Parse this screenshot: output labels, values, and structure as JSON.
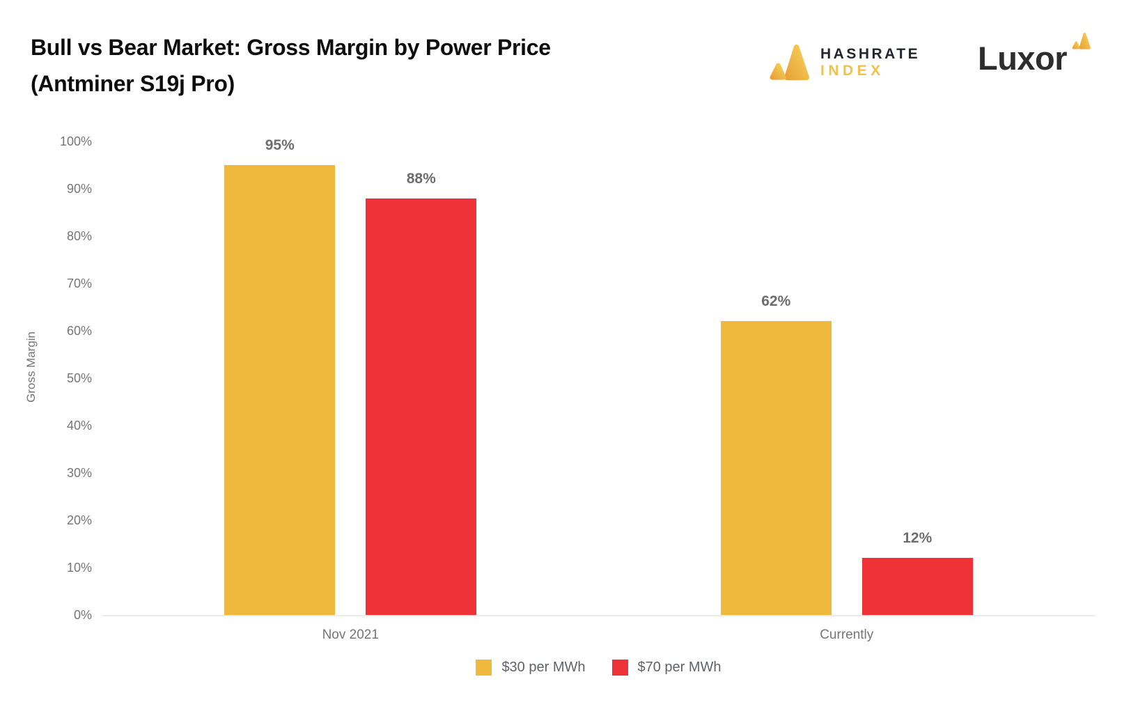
{
  "title": {
    "line1": "Bull vs Bear Market: Gross Margin by Power Price",
    "line2": "(Antminer S19j Pro)"
  },
  "logos": {
    "hashrate_index": {
      "line1": "HASHRATE",
      "line2": "INDEX"
    },
    "luxor": {
      "text": "Luxor"
    }
  },
  "colors": {
    "gold": "#eeb93c",
    "red": "#ef3237",
    "logo_gold_dark": "#e8a23a",
    "logo_gold_light": "#f7d158"
  },
  "chart_data": {
    "type": "bar",
    "categories": [
      "Nov 2021",
      "Currently"
    ],
    "series": [
      {
        "name": "$30 per MWh",
        "color": "#eeb93c",
        "values": [
          95,
          62
        ],
        "labels": [
          "95%",
          "62%"
        ]
      },
      {
        "name": "$70 per MWh",
        "color": "#ef3237",
        "values": [
          88,
          12
        ],
        "labels": [
          "88%",
          "12%"
        ]
      }
    ],
    "ylabel": "Gross Margin",
    "ylim": [
      0,
      100
    ],
    "yticks": [
      {
        "value": 0,
        "label": "0%"
      },
      {
        "value": 10,
        "label": "10%"
      },
      {
        "value": 20,
        "label": "20%"
      },
      {
        "value": 30,
        "label": "30%"
      },
      {
        "value": 40,
        "label": "40%"
      },
      {
        "value": 50,
        "label": "50%"
      },
      {
        "value": 60,
        "label": "60%"
      },
      {
        "value": 70,
        "label": "70%"
      },
      {
        "value": 80,
        "label": "80%"
      },
      {
        "value": 90,
        "label": "90%"
      },
      {
        "value": 100,
        "label": "100%"
      }
    ],
    "grid": false,
    "legend_position": "bottom"
  }
}
